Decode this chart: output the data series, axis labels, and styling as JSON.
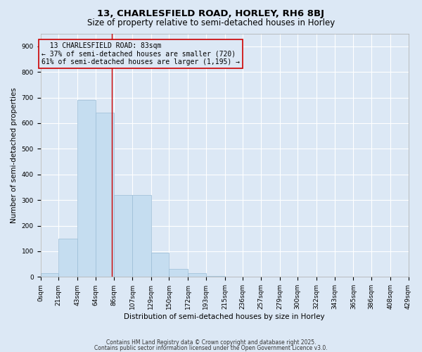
{
  "title1": "13, CHARLESFIELD ROAD, HORLEY, RH6 8BJ",
  "title2": "Size of property relative to semi-detached houses in Horley",
  "xlabel": "Distribution of semi-detached houses by size in Horley",
  "ylabel": "Number of semi-detached properties",
  "footnote1": "Contains HM Land Registry data © Crown copyright and database right 2025.",
  "footnote2": "Contains public sector information licensed under the Open Government Licence v3.0.",
  "bins": [
    0,
    21,
    43,
    64,
    86,
    107,
    129,
    150,
    172,
    193,
    215,
    236,
    257,
    279,
    300,
    322,
    343,
    365,
    386,
    408,
    429
  ],
  "counts": [
    15,
    150,
    690,
    640,
    320,
    320,
    95,
    30,
    15,
    5,
    2,
    1,
    0,
    0,
    0,
    0,
    0,
    0,
    0,
    0
  ],
  "bar_color": "#c5ddf0",
  "bar_edge_color": "#9bbdd6",
  "property_size": 83,
  "property_label": "13 CHARLESFIELD ROAD: 83sqm",
  "smaller_pct": "37%",
  "smaller_n": "720",
  "larger_pct": "61%",
  "larger_n": "1,195",
  "vline_color": "#cc0000",
  "annotation_box_color": "#cc0000",
  "ylim": [
    0,
    950
  ],
  "yticks": [
    0,
    100,
    200,
    300,
    400,
    500,
    600,
    700,
    800,
    900
  ],
  "bg_color": "#dce8f5",
  "grid_color": "#ffffff",
  "title_fontsize": 9.5,
  "subtitle_fontsize": 8.5,
  "axis_label_fontsize": 7.5,
  "tick_fontsize": 6.5,
  "ann_fontsize": 7.0,
  "footnote_fontsize": 5.5
}
